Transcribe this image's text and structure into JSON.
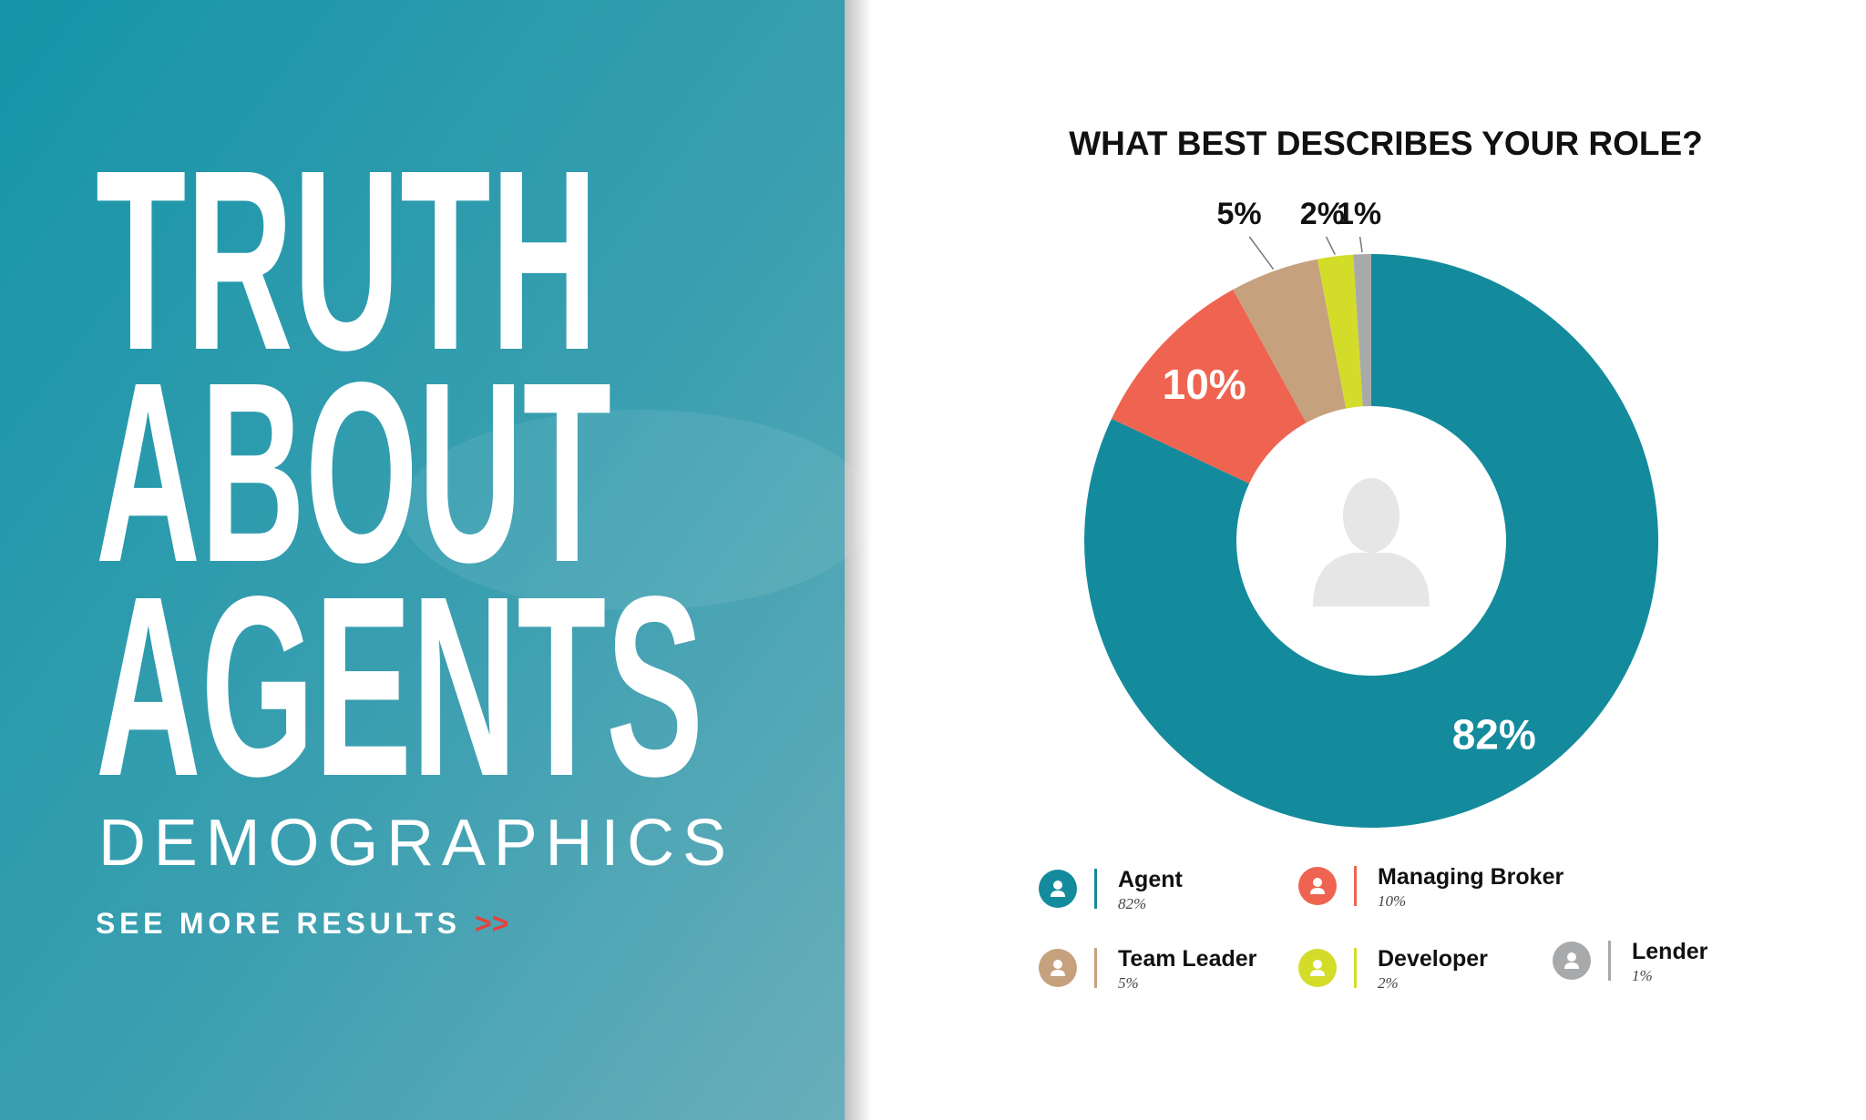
{
  "panel": {
    "title_lines": [
      "TRUTH",
      "ABOUT",
      "AGENTS"
    ],
    "subtitle": "DEMOGRAPHICS",
    "link": "SEE MORE RESULTS",
    "link_arrow": ">>"
  },
  "chart_data": {
    "type": "donut",
    "title": "WHAT BEST DESCRIBES YOUR ROLE?",
    "categories": [
      "Agent",
      "Managing Broker",
      "Team Leader",
      "Developer",
      "Lender"
    ],
    "values": [
      82,
      10,
      5,
      2,
      1
    ],
    "value_labels": [
      "82%",
      "10%",
      "5%",
      "2%",
      "1%"
    ],
    "colors": [
      "#148b9c",
      "#ef6450",
      "#c5a17d",
      "#d4dc2a",
      "#a8a9ab"
    ]
  }
}
